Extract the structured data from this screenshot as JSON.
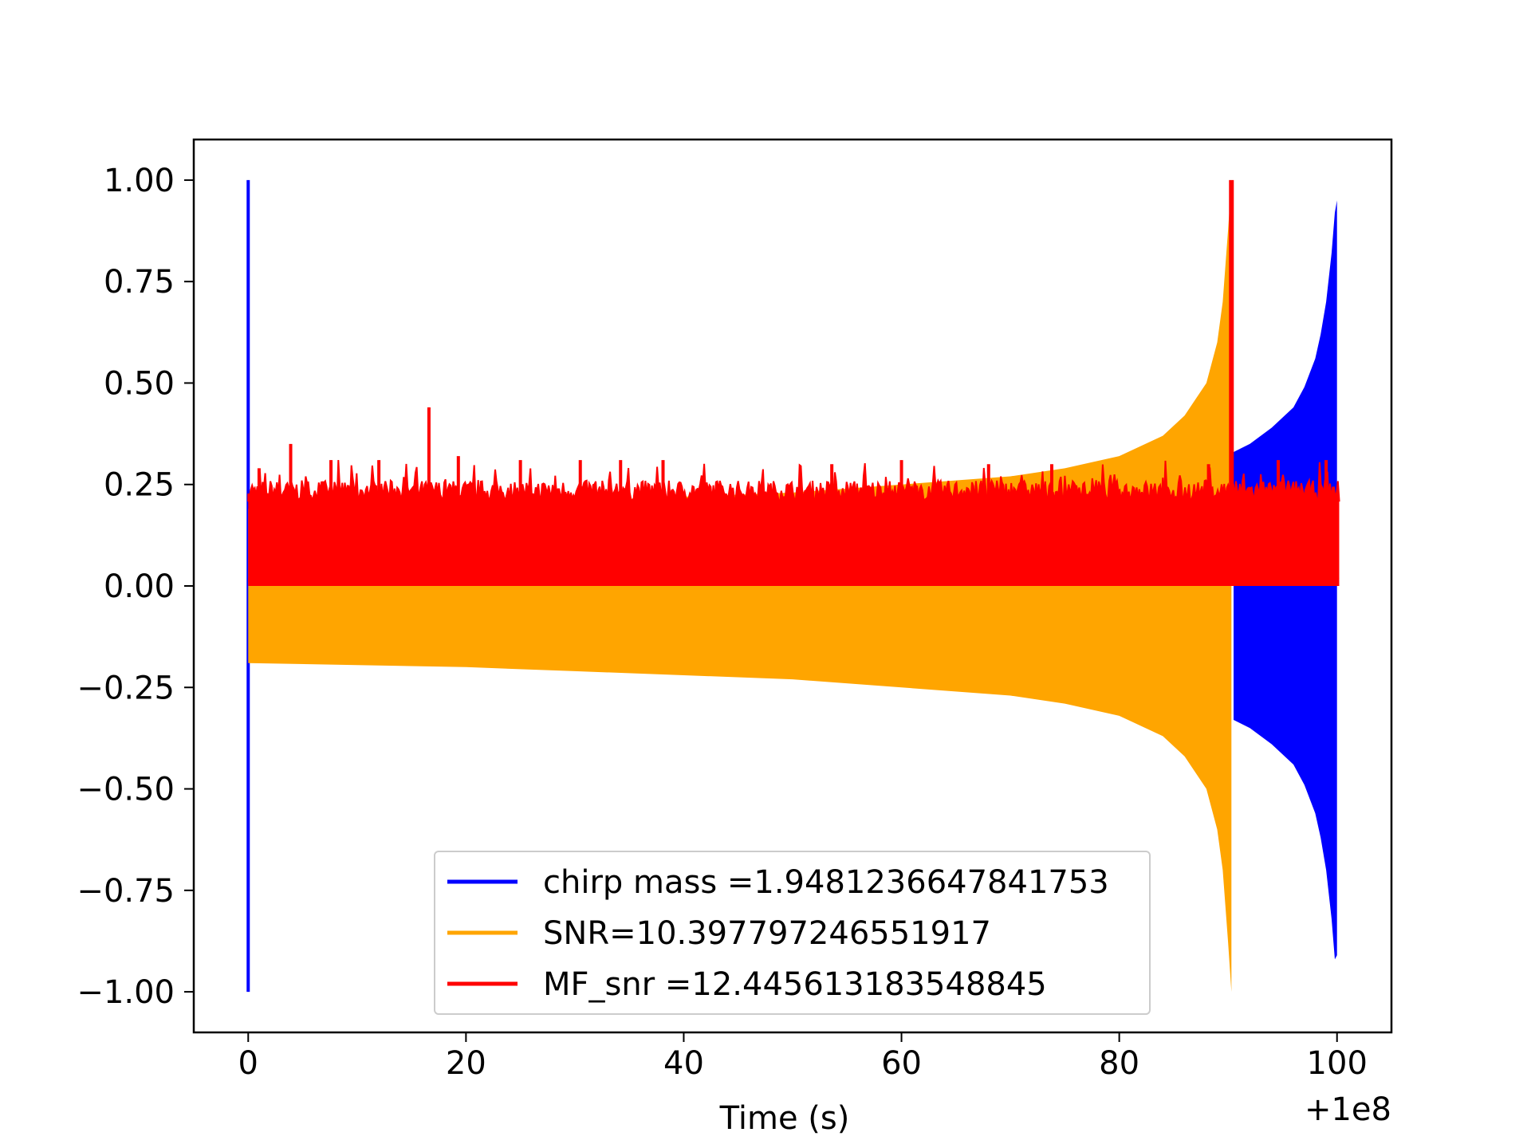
{
  "chart_data": {
    "type": "line",
    "title": "",
    "xlabel": "Time (s)",
    "ylabel": "",
    "x_offset_label": "+1e8",
    "xlim": [
      -5,
      105
    ],
    "ylim": [
      -1.1,
      1.1
    ],
    "xticks": [
      0,
      20,
      40,
      60,
      80,
      100
    ],
    "xtick_labels": [
      "0",
      "20",
      "40",
      "60",
      "80",
      "100"
    ],
    "yticks": [
      1.0,
      0.75,
      0.5,
      0.25,
      0.0,
      -0.25,
      -0.5,
      -0.75,
      -1.0
    ],
    "ytick_labels": [
      "1.00",
      "0.75",
      "0.50",
      "0.25",
      "0.00",
      "−0.25",
      "−0.50",
      "−0.75",
      "−1.00"
    ],
    "grid": false,
    "legend_position": "lower-center",
    "series": [
      {
        "name": "chirp mass =1.9481236647841753",
        "color": "#0000ff",
        "spike": {
          "x": 0.0,
          "y_max": 1.0,
          "y_min": -1.0
        },
        "envelope": {
          "x": [
            90.5,
            92,
            94,
            96,
            97,
            98,
            98.5,
            99,
            99.5,
            99.8,
            100.0
          ],
          "upper": [
            0.33,
            0.35,
            0.39,
            0.44,
            0.49,
            0.56,
            0.62,
            0.7,
            0.82,
            0.92,
            0.95
          ],
          "lower": [
            -0.33,
            -0.35,
            -0.39,
            -0.44,
            -0.49,
            -0.56,
            -0.62,
            -0.7,
            -0.82,
            -0.92,
            -0.91
          ]
        }
      },
      {
        "name": "SNR=10.397797246551917",
        "color": "#ffa500",
        "envelope": {
          "x": [
            0,
            10,
            20,
            30,
            40,
            50,
            60,
            70,
            75,
            80,
            84,
            86,
            88,
            89,
            89.5,
            90.0,
            90.3
          ],
          "upper": [
            0.19,
            0.195,
            0.2,
            0.21,
            0.22,
            0.23,
            0.25,
            0.27,
            0.29,
            0.32,
            0.37,
            0.42,
            0.5,
            0.6,
            0.7,
            0.88,
            1.0
          ],
          "lower": [
            -0.19,
            -0.195,
            -0.2,
            -0.21,
            -0.22,
            -0.23,
            -0.25,
            -0.27,
            -0.29,
            -0.32,
            -0.37,
            -0.42,
            -0.5,
            -0.6,
            -0.7,
            -0.88,
            -1.0
          ]
        }
      },
      {
        "name": "MF_snr =12.445613183548845",
        "color": "#ff0000",
        "baseline": [
          0.0,
          0.21
        ],
        "peak": {
          "x": 90.3,
          "y": 1.0
        },
        "spikes": [
          {
            "x": 1.0,
            "y": 0.29
          },
          {
            "x": 3.9,
            "y": 0.35
          },
          {
            "x": 7.6,
            "y": 0.31
          },
          {
            "x": 12.0,
            "y": 0.31
          },
          {
            "x": 16.6,
            "y": 0.44
          },
          {
            "x": 19.3,
            "y": 0.32
          },
          {
            "x": 25.0,
            "y": 0.31
          },
          {
            "x": 30.5,
            "y": 0.31
          },
          {
            "x": 34.2,
            "y": 0.31
          },
          {
            "x": 38.1,
            "y": 0.31
          },
          {
            "x": 53.6,
            "y": 0.3
          },
          {
            "x": 60.0,
            "y": 0.31
          },
          {
            "x": 68.0,
            "y": 0.3
          },
          {
            "x": 73.8,
            "y": 0.3
          },
          {
            "x": 88.2,
            "y": 0.3
          },
          {
            "x": 94.6,
            "y": 0.31
          },
          {
            "x": 99.0,
            "y": 0.31
          }
        ]
      }
    ]
  }
}
